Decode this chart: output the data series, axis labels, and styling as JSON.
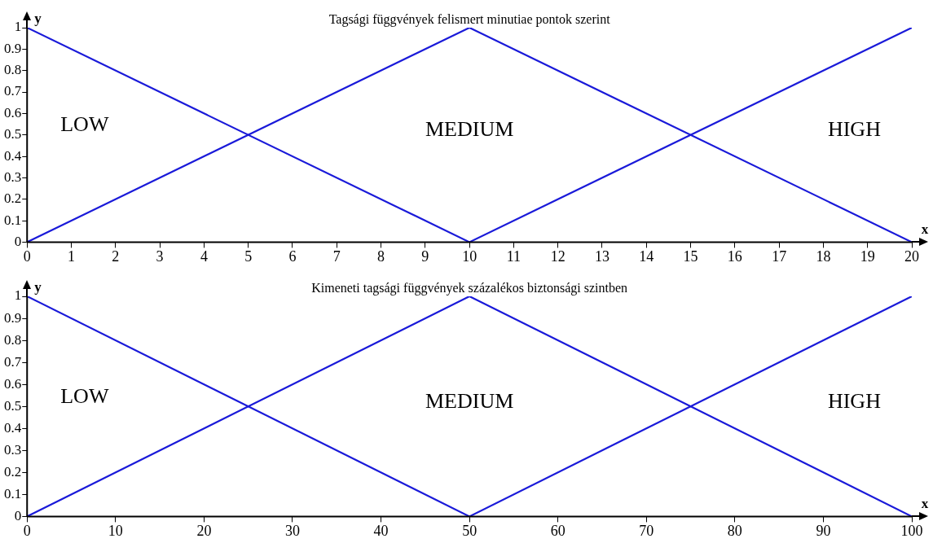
{
  "chart_data": [
    {
      "type": "line",
      "title": "Tagsági függvények felismert minutiae pontok szerint",
      "xlabel": "x",
      "ylabel": "y",
      "xlim": [
        0,
        20
      ],
      "xticks": [
        0,
        1,
        2,
        3,
        4,
        5,
        6,
        7,
        8,
        9,
        10,
        11,
        12,
        13,
        14,
        15,
        16,
        17,
        18,
        19,
        20
      ],
      "ylim": [
        0,
        1
      ],
      "yticks": [
        0,
        0.1,
        0.2,
        0.3,
        0.4,
        0.5,
        0.6,
        0.7,
        0.8,
        0.9,
        1
      ],
      "grid": false,
      "legend": false,
      "marker": "none",
      "line_style": "solid",
      "series": [
        {
          "name": "LOW",
          "color": "#1a1ad9",
          "x": [
            0,
            10
          ],
          "values": [
            1,
            0
          ]
        },
        {
          "name": "MEDIUM",
          "color": "#1a1ad9",
          "x": [
            0,
            10,
            20
          ],
          "values": [
            0,
            1,
            0
          ]
        },
        {
          "name": "HIGH",
          "color": "#1a1ad9",
          "x": [
            10,
            20
          ],
          "values": [
            0,
            1
          ]
        }
      ]
    },
    {
      "type": "line",
      "title": "Kimeneti tagsági függvények százalékos biztonsági szintben",
      "xlabel": "x",
      "ylabel": "y",
      "xlim": [
        0,
        100
      ],
      "xticks": [
        0,
        10,
        20,
        30,
        40,
        50,
        60,
        70,
        80,
        90,
        100
      ],
      "ylim": [
        0,
        1
      ],
      "yticks": [
        0,
        0.1,
        0.2,
        0.3,
        0.4,
        0.5,
        0.6,
        0.7,
        0.8,
        0.9,
        1
      ],
      "grid": false,
      "legend": false,
      "marker": "none",
      "line_style": "solid",
      "series": [
        {
          "name": "LOW",
          "color": "#1a1ad9",
          "x": [
            0,
            50
          ],
          "values": [
            1,
            0
          ]
        },
        {
          "name": "MEDIUM",
          "color": "#1a1ad9",
          "x": [
            0,
            50,
            100
          ],
          "values": [
            0,
            1,
            0
          ]
        },
        {
          "name": "HIGH",
          "color": "#1a1ad9",
          "x": [
            50,
            100
          ],
          "values": [
            0,
            1
          ]
        }
      ]
    }
  ]
}
